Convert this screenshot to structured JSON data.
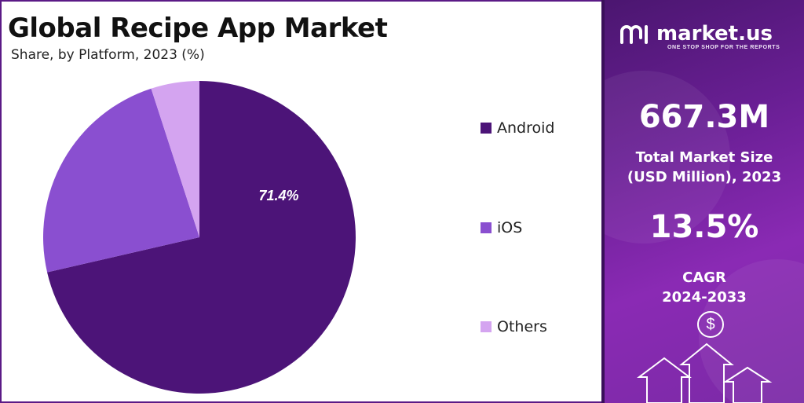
{
  "header": {
    "title": "Global Recipe App Market",
    "subtitle": "Share, by Platform, 2023 (%)"
  },
  "chart_data": {
    "type": "pie",
    "title": "Global Recipe App Market",
    "subtitle": "Share, by Platform, 2023 (%)",
    "categories": [
      "Android",
      "iOS",
      "Others"
    ],
    "values": [
      71.4,
      23.6,
      5.0
    ],
    "colors": [
      "#4c1478",
      "#8a4fd0",
      "#d4a4f0"
    ],
    "data_labels": [
      "71.4%",
      "",
      ""
    ],
    "legend_position": "right"
  },
  "sidebar": {
    "logo_text": "market.us",
    "logo_tagline": "ONE STOP SHOP FOR THE REPORTS",
    "market_size_value": "667.3M",
    "market_size_label_line1": "Total Market Size",
    "market_size_label_line2": "(USD Million), 2023",
    "cagr_value": "13.5%",
    "cagr_label_line1": "CAGR",
    "cagr_label_line2": "2024-2033",
    "dollar_symbol": "$",
    "icons": [
      "market-us-logo-icon",
      "dollar-circle-icon",
      "growth-arrows-icon"
    ]
  }
}
